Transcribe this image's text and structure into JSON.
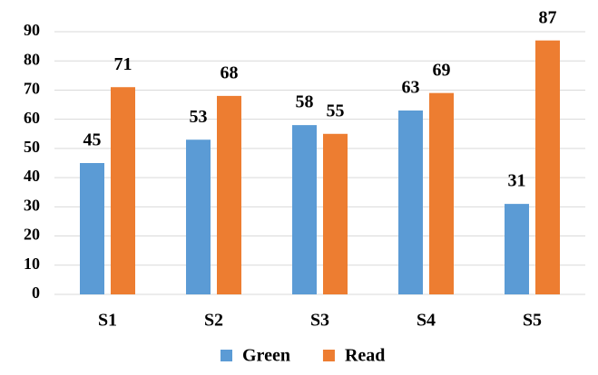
{
  "chart_data": {
    "type": "bar",
    "categories": [
      "S1",
      "S2",
      "S3",
      "S4",
      "S5"
    ],
    "series": [
      {
        "name": "Green",
        "color": "#5b9bd5",
        "values": [
          45,
          53,
          58,
          63,
          31
        ]
      },
      {
        "name": "Read",
        "color": "#ed7d31",
        "values": [
          71,
          68,
          55,
          69,
          87
        ]
      }
    ],
    "ylim": [
      0,
      90
    ],
    "yticks": [
      0,
      10,
      20,
      30,
      40,
      50,
      60,
      70,
      80,
      90
    ],
    "grid": true,
    "legend": "bottom"
  }
}
